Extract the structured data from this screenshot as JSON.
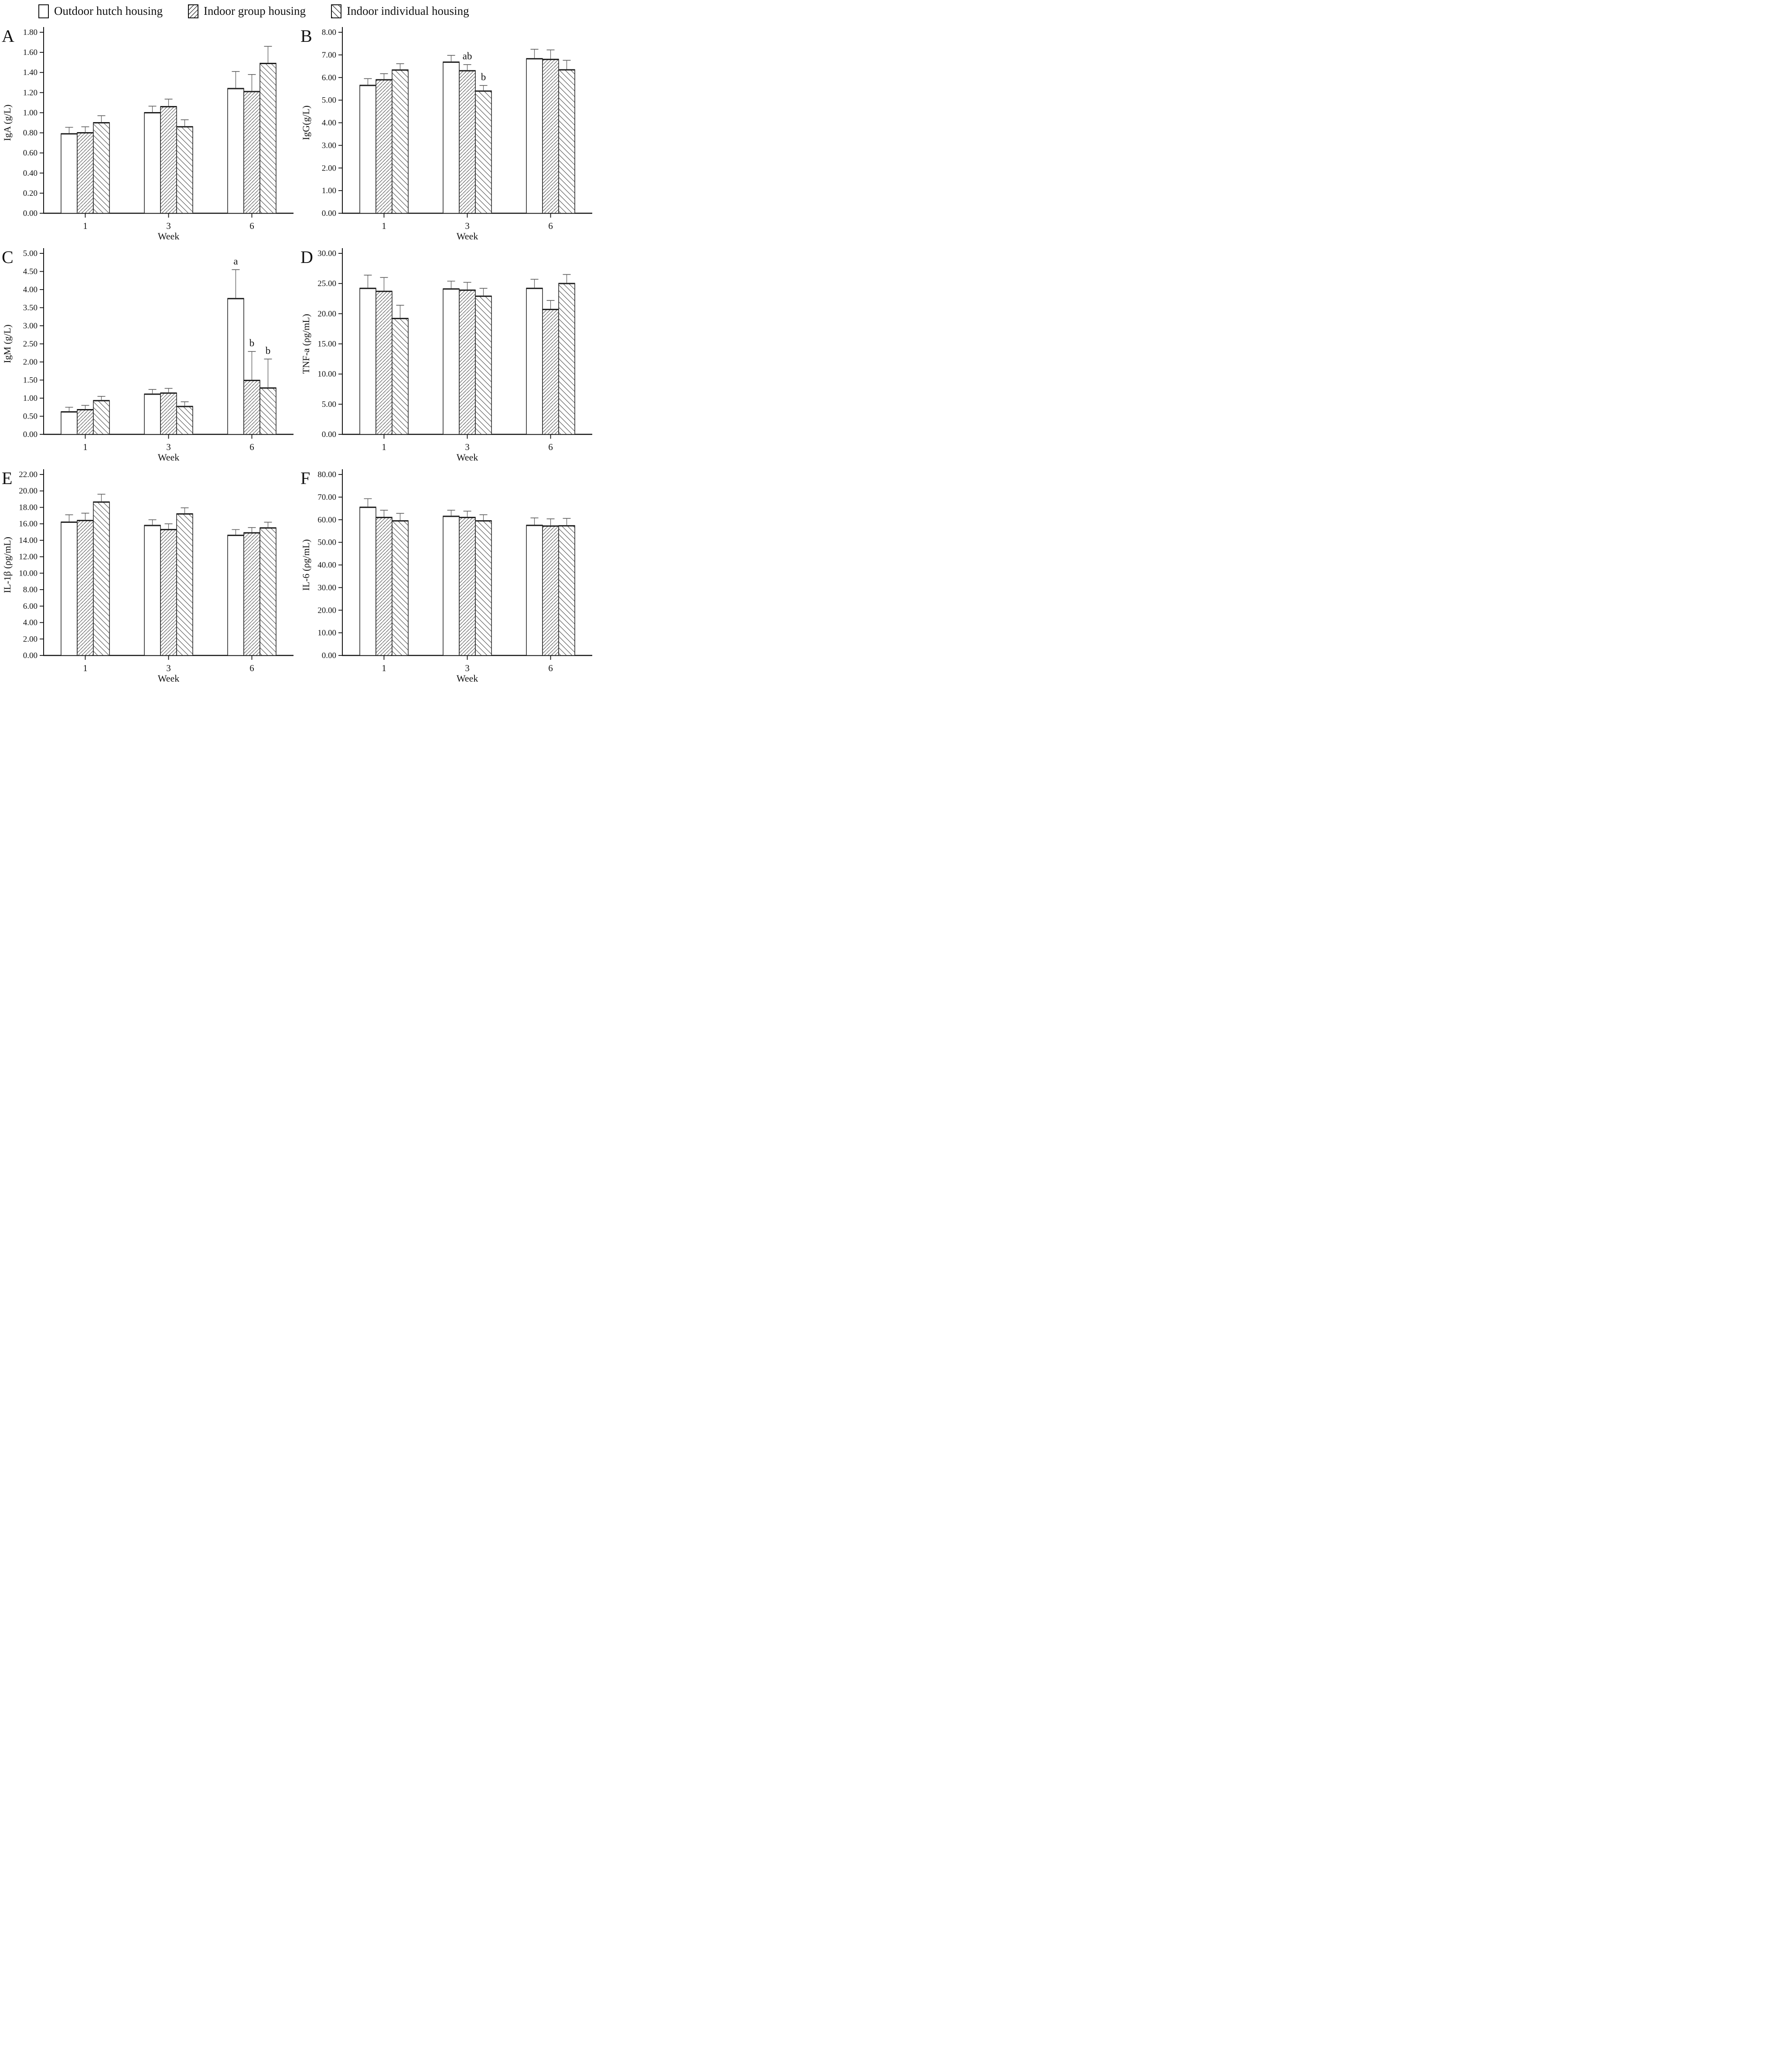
{
  "legend": {
    "items": [
      {
        "label": "Outdoor hutch housing",
        "hatch": "none"
      },
      {
        "label": "Indoor group housing",
        "hatch": "forward"
      },
      {
        "label": "Indoor individual housing",
        "hatch": "backward"
      }
    ]
  },
  "chart_data": [
    {
      "type": "bar",
      "panel": "A",
      "ylabel": "IgA (g/L)",
      "xlabel": "Week",
      "ylim": [
        0,
        1.8
      ],
      "ytick_step": 0.2,
      "grid": false,
      "categories": [
        "1",
        "3",
        "6"
      ],
      "series": [
        {
          "name": "Outdoor hutch housing",
          "hatch": "none",
          "values": [
            0.79,
            1.0,
            1.24
          ],
          "errors": [
            0.065,
            0.065,
            0.17
          ]
        },
        {
          "name": "Indoor group housing",
          "hatch": "forward",
          "values": [
            0.8,
            1.06,
            1.21
          ],
          "errors": [
            0.06,
            0.075,
            0.17
          ]
        },
        {
          "name": "Indoor individual housing",
          "hatch": "backward",
          "values": [
            0.9,
            0.86,
            1.49
          ],
          "errors": [
            0.07,
            0.07,
            0.17
          ]
        }
      ],
      "annotations": []
    },
    {
      "type": "bar",
      "panel": "B",
      "ylabel": "IgG(g/L)",
      "xlabel": "Week",
      "ylim": [
        0,
        8.0
      ],
      "ytick_step": 1.0,
      "grid": false,
      "categories": [
        "1",
        "3",
        "6"
      ],
      "series": [
        {
          "name": "Outdoor hutch housing",
          "hatch": "none",
          "values": [
            5.65,
            6.68,
            6.83
          ],
          "errors": [
            0.3,
            0.3,
            0.42
          ]
        },
        {
          "name": "Indoor group housing",
          "hatch": "forward",
          "values": [
            5.9,
            6.3,
            6.8
          ],
          "errors": [
            0.27,
            0.27,
            0.42
          ]
        },
        {
          "name": "Indoor individual housing",
          "hatch": "backward",
          "values": [
            6.33,
            5.4,
            6.34
          ],
          "errors": [
            0.28,
            0.25,
            0.42
          ]
        }
      ],
      "annotations": [
        {
          "category_index": 1,
          "series_index": 1,
          "text": "ab"
        },
        {
          "category_index": 1,
          "series_index": 2,
          "text": "b"
        }
      ]
    },
    {
      "type": "bar",
      "panel": "C",
      "ylabel": "IgM (g/L)",
      "xlabel": "Week",
      "ylim": [
        0,
        5.0
      ],
      "ytick_step": 0.5,
      "grid": false,
      "categories": [
        "1",
        "3",
        "6"
      ],
      "series": [
        {
          "name": "Outdoor hutch housing",
          "hatch": "none",
          "values": [
            0.62,
            1.11,
            3.75
          ],
          "errors": [
            0.13,
            0.13,
            0.8
          ]
        },
        {
          "name": "Indoor group housing",
          "hatch": "forward",
          "values": [
            0.68,
            1.14,
            1.49
          ],
          "errors": [
            0.12,
            0.13,
            0.8
          ]
        },
        {
          "name": "Indoor individual housing",
          "hatch": "backward",
          "values": [
            0.93,
            0.77,
            1.28
          ],
          "errors": [
            0.12,
            0.13,
            0.8
          ]
        }
      ],
      "annotations": [
        {
          "category_index": 2,
          "series_index": 0,
          "text": "a"
        },
        {
          "category_index": 2,
          "series_index": 1,
          "text": "b"
        },
        {
          "category_index": 2,
          "series_index": 2,
          "text": "b"
        }
      ]
    },
    {
      "type": "bar",
      "panel": "D",
      "ylabel": "TNF-a (ρg/mL)",
      "xlabel": "Week",
      "ylim": [
        0,
        30.0
      ],
      "ytick_step": 5.0,
      "grid": false,
      "categories": [
        "1",
        "3",
        "6"
      ],
      "series": [
        {
          "name": "Outdoor hutch housing",
          "hatch": "none",
          "values": [
            24.2,
            24.1,
            24.2
          ],
          "errors": [
            2.2,
            1.3,
            1.5
          ]
        },
        {
          "name": "Indoor group housing",
          "hatch": "forward",
          "values": [
            23.7,
            23.9,
            20.7
          ],
          "errors": [
            2.3,
            1.3,
            1.5
          ]
        },
        {
          "name": "Indoor individual housing",
          "hatch": "backward",
          "values": [
            19.2,
            22.9,
            25.0
          ],
          "errors": [
            2.2,
            1.3,
            1.5
          ]
        }
      ],
      "annotations": []
    },
    {
      "type": "bar",
      "panel": "E",
      "ylabel": "IL-1β (ρg/mL)",
      "xlabel": "Week",
      "ylim": [
        0,
        22.0
      ],
      "ytick_step": 2.0,
      "grid": false,
      "categories": [
        "1",
        "3",
        "6"
      ],
      "series": [
        {
          "name": "Outdoor hutch housing",
          "hatch": "none",
          "values": [
            16.2,
            15.8,
            14.6
          ],
          "errors": [
            0.9,
            0.7,
            0.7
          ]
        },
        {
          "name": "Indoor group housing",
          "hatch": "forward",
          "values": [
            16.4,
            15.3,
            14.9
          ],
          "errors": [
            0.9,
            0.7,
            0.65
          ]
        },
        {
          "name": "Indoor individual housing",
          "hatch": "backward",
          "values": [
            18.65,
            17.2,
            15.5
          ],
          "errors": [
            0.95,
            0.75,
            0.7
          ]
        }
      ],
      "annotations": []
    },
    {
      "type": "bar",
      "panel": "F",
      "ylabel": "IL-6 (ρg/mL)",
      "xlabel": "Week",
      "ylim": [
        0,
        80.0
      ],
      "ytick_step": 10.0,
      "grid": false,
      "categories": [
        "1",
        "3",
        "6"
      ],
      "series": [
        {
          "name": "Outdoor hutch housing",
          "hatch": "none",
          "values": [
            65.5,
            61.5,
            57.5
          ],
          "errors": [
            3.8,
            2.7,
            3.3
          ]
        },
        {
          "name": "Indoor group housing",
          "hatch": "forward",
          "values": [
            61.0,
            61.0,
            57.2
          ],
          "errors": [
            3.2,
            2.8,
            3.2
          ]
        },
        {
          "name": "Indoor individual housing",
          "hatch": "backward",
          "values": [
            59.5,
            59.5,
            57.3
          ],
          "errors": [
            3.3,
            2.7,
            3.3
          ]
        }
      ],
      "annotations": []
    }
  ],
  "style_colors": {
    "axis": "#111111",
    "bar_outline": "#1c1c1c",
    "hatch_line": "#3f3f3f",
    "error_bar": "#5a5a5a",
    "text": "#111111"
  }
}
